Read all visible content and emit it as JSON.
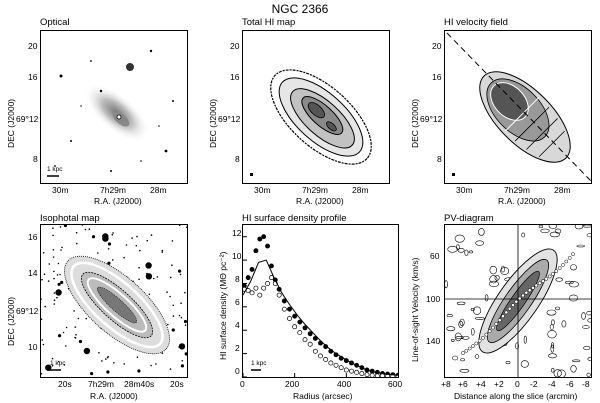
{
  "figure_title": "NGC 2366",
  "panels": [
    {
      "title": "Optical",
      "xlabel": "R.A. (J2000)",
      "ylabel": "DEC (J2000)",
      "xticks": [
        "30m",
        "7h29m",
        "28m"
      ],
      "yticks": [
        "20",
        "16",
        "69°12",
        "8"
      ],
      "scalebar": "1 kpc"
    },
    {
      "title": "Total HI map",
      "xlabel": "R.A. (J2000)",
      "ylabel": "DEC (J2000)",
      "xticks": [
        "30m",
        "7h29m",
        "28m"
      ],
      "yticks": [
        "20",
        "16",
        "69°12",
        "8"
      ]
    },
    {
      "title": "HI velocity field",
      "xlabel": "R.A. (J2000)",
      "ylabel": "DEC (J2000)",
      "xticks": [
        "30m",
        "7h29m",
        "28m"
      ],
      "yticks": [
        "20",
        "16",
        "69°12",
        "8"
      ]
    },
    {
      "title": "Isophotal map",
      "xlabel": "R.A. (J2000)",
      "ylabel": "DEC (J2000)",
      "xticks": [
        "20s",
        "7h29m",
        "28m40s",
        "20s"
      ],
      "yticks": [
        "16",
        "14",
        "69°12",
        "10"
      ],
      "scalebar": "1 kpc"
    },
    {
      "title": "HI surface density profile",
      "xlabel": "Radius (arcsec)",
      "ylabel": "HI surface density (MΘ pc⁻²)",
      "xticks": [
        "0",
        "200",
        "400",
        "600"
      ],
      "yticks": [
        "12",
        "10",
        "8",
        "6",
        "4",
        "2",
        "0"
      ],
      "scalebar": "1 kpc"
    },
    {
      "title": "PV-diagram",
      "xlabel": "Distance along the slice (arcmin)",
      "ylabel": "Line-of-sight Velocity (km/s)",
      "xticks": [
        "+8",
        "+6",
        "+4",
        "+2",
        "0",
        "-2",
        "-4",
        "-6",
        "-8"
      ],
      "yticks": [
        "60",
        "100",
        "140"
      ]
    }
  ],
  "chart_data": {
    "type": "scatter",
    "title": "HI surface density profile",
    "xlabel": "Radius (arcsec)",
    "ylabel": "HI surface density (MΘ pc⁻²)",
    "xlim": [
      0,
      600
    ],
    "ylim": [
      0,
      13
    ],
    "series": [
      {
        "marker": "filled",
        "x": [
          5,
          20,
          35,
          50,
          65,
          80,
          95,
          110,
          125,
          140,
          160,
          180,
          200,
          220,
          240,
          260,
          280,
          300,
          320,
          340,
          360,
          380,
          400,
          420,
          440,
          460,
          480,
          500,
          520,
          540,
          560,
          580,
          600
        ],
        "y": [
          7.8,
          8.5,
          9.2,
          10.8,
          11.8,
          12.0,
          11.2,
          9.5,
          8.3,
          7.5,
          6.5,
          5.8,
          5.2,
          4.7,
          4.2,
          3.7,
          3.3,
          2.9,
          2.6,
          2.2,
          1.9,
          1.6,
          1.4,
          1.2,
          1.0,
          0.8,
          0.6,
          0.5,
          0.4,
          0.3,
          0.25,
          0.2,
          0.15
        ]
      },
      {
        "marker": "open",
        "x": [
          5,
          20,
          35,
          50,
          65,
          80,
          95,
          110,
          125,
          140,
          160,
          180,
          200,
          220,
          240,
          260,
          280,
          300,
          320,
          340,
          360,
          380,
          400,
          420,
          440,
          460,
          480,
          500,
          520,
          540,
          560,
          580,
          600
        ],
        "y": [
          7.5,
          7.4,
          7.2,
          7.6,
          7.0,
          7.6,
          8.0,
          8.5,
          8.0,
          7.0,
          5.8,
          5.0,
          4.3,
          3.8,
          3.2,
          2.8,
          2.2,
          1.8,
          1.5,
          1.2,
          1.0,
          0.8,
          0.6,
          0.5,
          0.4,
          0.3,
          0.2,
          0.15,
          0.1,
          0.1,
          0.05,
          0.05,
          0.0
        ]
      },
      {
        "marker": "line",
        "x": [
          0,
          30,
          60,
          90,
          120,
          150,
          180,
          210,
          240,
          270,
          300,
          330,
          360,
          390,
          420,
          450,
          480,
          510,
          540,
          570,
          600
        ],
        "y": [
          7.0,
          8.2,
          9.8,
          10.0,
          8.5,
          7.2,
          6.2,
          5.3,
          4.5,
          3.8,
          3.1,
          2.5,
          2.0,
          1.6,
          1.2,
          0.9,
          0.6,
          0.4,
          0.3,
          0.2,
          0.15
        ]
      }
    ]
  }
}
